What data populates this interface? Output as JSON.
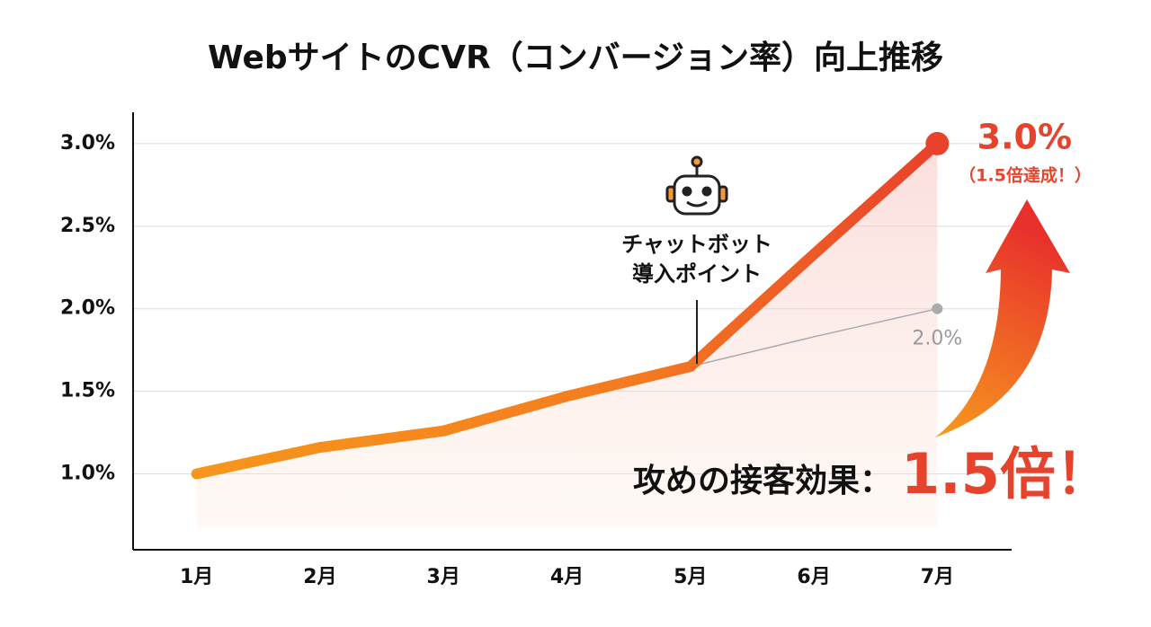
{
  "chart_data": {
    "type": "line",
    "title": "WebサイトのCVR（コンバージョン率）向上推移",
    "categories": [
      "1月",
      "2月",
      "3月",
      "4月",
      "5月",
      "6月",
      "7月"
    ],
    "series": [
      {
        "color": "#f26a21",
        "values": [
          1.0,
          1.16,
          1.26,
          1.47,
          1.65,
          2.33,
          3.0
        ],
        "value_labels": [
          null,
          null,
          null,
          null,
          null,
          null,
          "3.0%"
        ]
      },
      {
        "color": "#aaaaaa",
        "values": [
          null,
          null,
          null,
          null,
          1.65,
          1.83,
          2.0
        ],
        "value_labels": [
          null,
          null,
          null,
          null,
          null,
          null,
          "2.0%"
        ]
      }
    ],
    "ylim": [
      0.54,
      3.19
    ],
    "yticks": [
      {
        "value": 1.0,
        "label": "1.0%"
      },
      {
        "value": 1.5,
        "label": "1.5%"
      },
      {
        "value": 2.0,
        "label": "2.0%"
      },
      {
        "value": 2.5,
        "label": "2.5%"
      },
      {
        "value": 3.0,
        "label": "3.0%"
      }
    ],
    "grid": true,
    "annotations": {
      "chatbot": [
        "チャットボット",
        "導入ポイント"
      ],
      "achievement": "（1.5倍達成！）",
      "effect": "攻めの接客効果：",
      "multiplier": "1.5倍！"
    }
  }
}
